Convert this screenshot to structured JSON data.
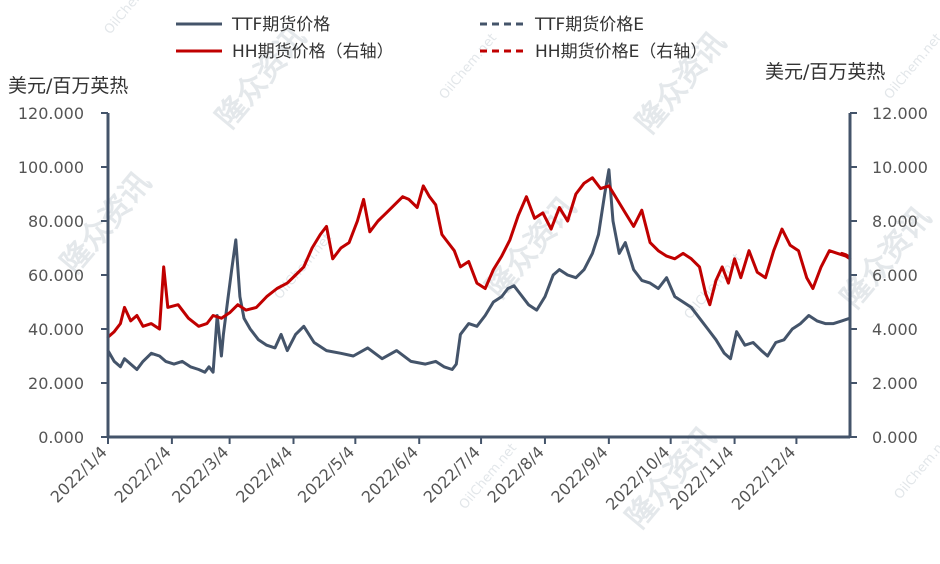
{
  "chart_data": {
    "type": "line",
    "left_axis_label": "美元/百万英热",
    "right_axis_label": "美元/百万英热",
    "left_ylim": [
      0,
      120
    ],
    "right_ylim": [
      0,
      12
    ],
    "left_ticks": [
      "0.000",
      "20.000",
      "40.000",
      "60.000",
      "80.000",
      "100.000",
      "120.000"
    ],
    "right_ticks": [
      "0.000",
      "2.000",
      "4.000",
      "6.000",
      "8.000",
      "10.000",
      "12.000"
    ],
    "x_ticks": [
      "2022/1/4",
      "2022/2/4",
      "2022/3/4",
      "2022/4/4",
      "2022/5/4",
      "2022/6/4",
      "2022/7/4",
      "2022/8/4",
      "2022/9/4",
      "2022/10/4",
      "2022/11/4",
      "2022/12/4"
    ],
    "x_range": [
      "2022/1/4",
      "2022/12/30"
    ],
    "legend": [
      "TTF期货价格",
      "TTF期货价格E",
      "HH期货价格（右轴）",
      "HH期货价格E（右轴）"
    ],
    "colors": {
      "ttf": "#44546a",
      "hh": "#c00000",
      "axis": "#44546a"
    },
    "watermark": {
      "brand": "隆众资讯",
      "site": "OilChem.net"
    },
    "series": [
      {
        "name": "TTF期货价格",
        "axis": "left",
        "points": [
          [
            "2022/1/4",
            32
          ],
          [
            "2022/1/7",
            28
          ],
          [
            "2022/1/10",
            26
          ],
          [
            "2022/1/12",
            29
          ],
          [
            "2022/1/15",
            27
          ],
          [
            "2022/1/18",
            25
          ],
          [
            "2022/1/21",
            28
          ],
          [
            "2022/1/25",
            31
          ],
          [
            "2022/1/29",
            30
          ],
          [
            "2022/2/1",
            28
          ],
          [
            "2022/2/5",
            27
          ],
          [
            "2022/2/9",
            28
          ],
          [
            "2022/2/13",
            26
          ],
          [
            "2022/2/17",
            25
          ],
          [
            "2022/2/20",
            24
          ],
          [
            "2022/2/22",
            26
          ],
          [
            "2022/2/24",
            24
          ],
          [
            "2022/2/26",
            45
          ],
          [
            "2022/2/28",
            30
          ],
          [
            "2022/3/1",
            38
          ],
          [
            "2022/3/3",
            50
          ],
          [
            "2022/3/5",
            62
          ],
          [
            "2022/3/7",
            73
          ],
          [
            "2022/3/9",
            52
          ],
          [
            "2022/3/11",
            44
          ],
          [
            "2022/3/14",
            40
          ],
          [
            "2022/3/18",
            36
          ],
          [
            "2022/3/22",
            34
          ],
          [
            "2022/3/26",
            33
          ],
          [
            "2022/3/29",
            38
          ],
          [
            "2022/4/1",
            32
          ],
          [
            "2022/4/5",
            38
          ],
          [
            "2022/4/9",
            41
          ],
          [
            "2022/4/14",
            35
          ],
          [
            "2022/4/20",
            32
          ],
          [
            "2022/4/27",
            31
          ],
          [
            "2022/5/3",
            30
          ],
          [
            "2022/5/10",
            33
          ],
          [
            "2022/5/17",
            29
          ],
          [
            "2022/5/24",
            32
          ],
          [
            "2022/5/31",
            28
          ],
          [
            "2022/6/7",
            27
          ],
          [
            "2022/6/12",
            28
          ],
          [
            "2022/6/16",
            26
          ],
          [
            "2022/6/20",
            25
          ],
          [
            "2022/6/22",
            27
          ],
          [
            "2022/6/24",
            38
          ],
          [
            "2022/6/28",
            42
          ],
          [
            "2022/7/2",
            41
          ],
          [
            "2022/7/6",
            45
          ],
          [
            "2022/7/10",
            50
          ],
          [
            "2022/7/14",
            52
          ],
          [
            "2022/7/17",
            55
          ],
          [
            "2022/7/20",
            56
          ],
          [
            "2022/7/23",
            53
          ],
          [
            "2022/7/27",
            49
          ],
          [
            "2022/7/31",
            47
          ],
          [
            "2022/8/4",
            52
          ],
          [
            "2022/8/8",
            60
          ],
          [
            "2022/8/11",
            62
          ],
          [
            "2022/8/15",
            60
          ],
          [
            "2022/8/19",
            59
          ],
          [
            "2022/8/23",
            62
          ],
          [
            "2022/8/27",
            68
          ],
          [
            "2022/8/30",
            75
          ],
          [
            "2022/9/2",
            90
          ],
          [
            "2022/9/4",
            99
          ],
          [
            "2022/9/6",
            80
          ],
          [
            "2022/9/9",
            68
          ],
          [
            "2022/9/12",
            72
          ],
          [
            "2022/9/16",
            62
          ],
          [
            "2022/9/20",
            58
          ],
          [
            "2022/9/24",
            57
          ],
          [
            "2022/9/28",
            55
          ],
          [
            "2022/10/2",
            59
          ],
          [
            "2022/10/6",
            52
          ],
          [
            "2022/10/10",
            50
          ],
          [
            "2022/10/14",
            48
          ],
          [
            "2022/10/18",
            44
          ],
          [
            "2022/10/22",
            40
          ],
          [
            "2022/10/26",
            36
          ],
          [
            "2022/10/30",
            31
          ],
          [
            "2022/11/2",
            29
          ],
          [
            "2022/11/5",
            39
          ],
          [
            "2022/11/9",
            34
          ],
          [
            "2022/11/13",
            35
          ],
          [
            "2022/11/17",
            32
          ],
          [
            "2022/11/20",
            30
          ],
          [
            "2022/11/24",
            35
          ],
          [
            "2022/11/28",
            36
          ],
          [
            "2022/12/2",
            40
          ],
          [
            "2022/12/6",
            42
          ],
          [
            "2022/12/10",
            45
          ],
          [
            "2022/12/14",
            43
          ],
          [
            "2022/12/18",
            42
          ],
          [
            "2022/12/22",
            42
          ],
          [
            "2022/12/26",
            43
          ],
          [
            "2022/12/30",
            44
          ]
        ]
      },
      {
        "name": "HH期货价格（右轴）",
        "axis": "right",
        "points": [
          [
            "2022/1/4",
            3.7
          ],
          [
            "2022/1/7",
            3.9
          ],
          [
            "2022/1/10",
            4.2
          ],
          [
            "2022/1/12",
            4.8
          ],
          [
            "2022/1/15",
            4.3
          ],
          [
            "2022/1/18",
            4.5
          ],
          [
            "2022/1/21",
            4.1
          ],
          [
            "2022/1/25",
            4.2
          ],
          [
            "2022/1/29",
            4.0
          ],
          [
            "2022/1/31",
            6.3
          ],
          [
            "2022/2/2",
            4.8
          ],
          [
            "2022/2/7",
            4.9
          ],
          [
            "2022/2/12",
            4.4
          ],
          [
            "2022/2/17",
            4.1
          ],
          [
            "2022/2/21",
            4.2
          ],
          [
            "2022/2/24",
            4.5
          ],
          [
            "2022/2/28",
            4.4
          ],
          [
            "2022/3/4",
            4.6
          ],
          [
            "2022/3/8",
            4.9
          ],
          [
            "2022/3/12",
            4.7
          ],
          [
            "2022/3/17",
            4.8
          ],
          [
            "2022/3/22",
            5.2
          ],
          [
            "2022/3/27",
            5.5
          ],
          [
            "2022/4/1",
            5.7
          ],
          [
            "2022/4/5",
            6.0
          ],
          [
            "2022/4/9",
            6.3
          ],
          [
            "2022/4/13",
            7.0
          ],
          [
            "2022/4/17",
            7.5
          ],
          [
            "2022/4/20",
            7.8
          ],
          [
            "2022/4/23",
            6.6
          ],
          [
            "2022/4/27",
            7.0
          ],
          [
            "2022/5/1",
            7.2
          ],
          [
            "2022/5/5",
            8.0
          ],
          [
            "2022/5/8",
            8.8
          ],
          [
            "2022/5/11",
            7.6
          ],
          [
            "2022/5/15",
            8.0
          ],
          [
            "2022/5/19",
            8.3
          ],
          [
            "2022/5/23",
            8.6
          ],
          [
            "2022/5/27",
            8.9
          ],
          [
            "2022/5/30",
            8.8
          ],
          [
            "2022/6/3",
            8.5
          ],
          [
            "2022/6/6",
            9.3
          ],
          [
            "2022/6/9",
            8.9
          ],
          [
            "2022/6/12",
            8.6
          ],
          [
            "2022/6/15",
            7.5
          ],
          [
            "2022/6/18",
            7.2
          ],
          [
            "2022/6/21",
            6.9
          ],
          [
            "2022/6/24",
            6.3
          ],
          [
            "2022/6/28",
            6.5
          ],
          [
            "2022/7/2",
            5.7
          ],
          [
            "2022/7/6",
            5.5
          ],
          [
            "2022/7/10",
            6.2
          ],
          [
            "2022/7/14",
            6.7
          ],
          [
            "2022/7/18",
            7.3
          ],
          [
            "2022/7/22",
            8.2
          ],
          [
            "2022/7/26",
            8.9
          ],
          [
            "2022/7/30",
            8.1
          ],
          [
            "2022/8/3",
            8.3
          ],
          [
            "2022/8/7",
            7.7
          ],
          [
            "2022/8/11",
            8.5
          ],
          [
            "2022/8/15",
            8.0
          ],
          [
            "2022/8/19",
            9.0
          ],
          [
            "2022/8/23",
            9.4
          ],
          [
            "2022/8/27",
            9.6
          ],
          [
            "2022/8/31",
            9.2
          ],
          [
            "2022/9/4",
            9.3
          ],
          [
            "2022/9/8",
            8.8
          ],
          [
            "2022/9/12",
            8.3
          ],
          [
            "2022/9/16",
            7.8
          ],
          [
            "2022/9/20",
            8.4
          ],
          [
            "2022/9/24",
            7.2
          ],
          [
            "2022/9/28",
            6.9
          ],
          [
            "2022/10/2",
            6.7
          ],
          [
            "2022/10/6",
            6.6
          ],
          [
            "2022/10/10",
            6.8
          ],
          [
            "2022/10/14",
            6.6
          ],
          [
            "2022/10/18",
            6.3
          ],
          [
            "2022/10/21",
            5.3
          ],
          [
            "2022/10/23",
            4.9
          ],
          [
            "2022/10/26",
            5.8
          ],
          [
            "2022/10/29",
            6.3
          ],
          [
            "2022/11/1",
            5.7
          ],
          [
            "2022/11/4",
            6.6
          ],
          [
            "2022/11/7",
            5.9
          ],
          [
            "2022/11/11",
            6.9
          ],
          [
            "2022/11/15",
            6.1
          ],
          [
            "2022/11/19",
            5.9
          ],
          [
            "2022/11/23",
            6.9
          ],
          [
            "2022/11/27",
            7.7
          ],
          [
            "2022/12/1",
            7.1
          ],
          [
            "2022/12/5",
            6.9
          ],
          [
            "2022/12/9",
            5.9
          ],
          [
            "2022/12/12",
            5.5
          ],
          [
            "2022/12/16",
            6.3
          ],
          [
            "2022/12/20",
            6.9
          ],
          [
            "2022/12/24",
            6.8
          ],
          [
            "2022/12/28",
            6.7
          ],
          [
            "2022/12/30",
            6.6
          ]
        ]
      },
      {
        "name": "TTF期货价格E",
        "axis": "left",
        "dashed": true,
        "points": []
      },
      {
        "name": "HH期货价格E（右轴）",
        "axis": "right",
        "dashed": true,
        "points": [
          [
            "2022/12/26",
            6.8
          ],
          [
            "2022/12/28",
            6.75
          ],
          [
            "2022/12/30",
            6.65
          ]
        ]
      }
    ]
  }
}
